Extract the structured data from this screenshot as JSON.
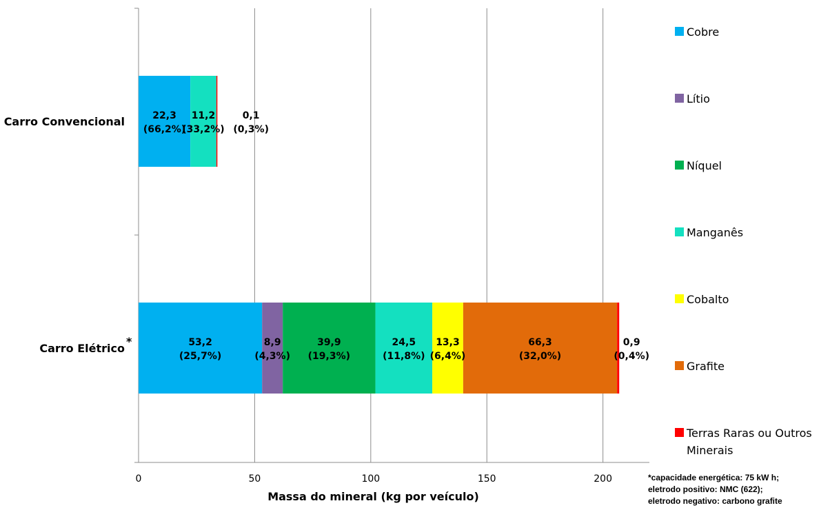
{
  "chart_data": {
    "type": "bar",
    "orientation": "horizontal",
    "stacked": true,
    "categories": [
      "Carro Convencional",
      "Carro Elétrico"
    ],
    "category_marker": [
      "",
      "*"
    ],
    "xlabel": "Massa do mineral (kg por veículo)",
    "xlim": [
      0,
      220
    ],
    "xticks": [
      0,
      50,
      100,
      150,
      200
    ],
    "grid": "vertical",
    "legend_position": "right",
    "series": [
      {
        "name": "Cobre",
        "color": "#00B0F0",
        "values": [
          22.3,
          53.2
        ],
        "labels": [
          [
            "22,3",
            "(66,2%)"
          ],
          [
            "53,2",
            "(25,7%)"
          ]
        ]
      },
      {
        "name": "Lítio",
        "color": "#8064A2",
        "values": [
          0,
          8.9
        ],
        "labels": [
          null,
          [
            "8,9",
            "(4,3%)"
          ]
        ]
      },
      {
        "name": "Níquel",
        "color": "#00B050",
        "values": [
          0,
          39.9
        ],
        "labels": [
          null,
          [
            "39,9",
            "(19,3%)"
          ]
        ]
      },
      {
        "name": "Manganês",
        "color": "#14E0C0",
        "values": [
          11.2,
          24.5
        ],
        "labels": [
          [
            "11,2",
            "(33,2%)"
          ],
          [
            "24,5",
            "(11,8%)"
          ]
        ]
      },
      {
        "name": "Cobalto",
        "color": "#FFFF00",
        "values": [
          0,
          13.3
        ],
        "labels": [
          null,
          [
            "13,3",
            "(6,4%)"
          ]
        ]
      },
      {
        "name": "Grafite",
        "color": "#E26B0A",
        "values": [
          0,
          66.3
        ],
        "labels": [
          null,
          [
            "66,3",
            "(32,0%)"
          ]
        ]
      },
      {
        "name": "Terras Raras ou Outros Minerais",
        "name_lines": [
          "Terras Raras ou Outros",
          "Minerais"
        ],
        "color": "#FF0000",
        "values": [
          0.1,
          0.9
        ],
        "labels": [
          [
            "0,1",
            "(0,3%)"
          ],
          [
            "0,9",
            "(0,4%)"
          ]
        ]
      }
    ],
    "footnote": [
      "*capacidade energética: 75 kW h;",
      "eletrodo positivo: NMC (622);",
      "eletrodo negativo: carbono grafite"
    ]
  }
}
